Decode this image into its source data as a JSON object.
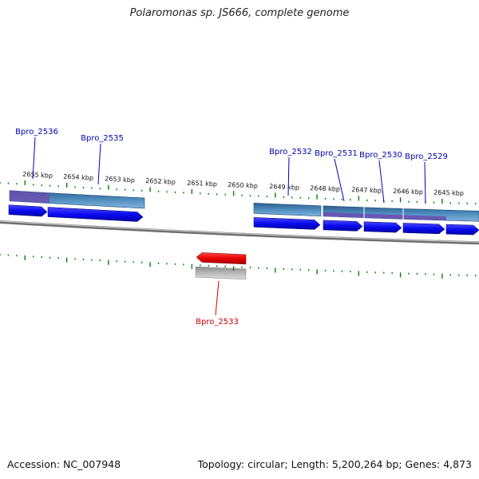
{
  "title": "Polaromonas sp. JS666, complete genome",
  "footer": {
    "accession": "Accession: NC_007948",
    "summary": "Topology: circular; Length: 5,200,264 bp; Genes: 4,873"
  },
  "colors": {
    "forward_gene": "#0a0af0",
    "reverse_gene": "#e00000",
    "feature_band": "#4a86b8",
    "feature_overlay": "#6a50b0",
    "reverse_band": "#b4b4b4",
    "backbone": "#8a8a8a",
    "ticks": "#008000",
    "label_forward": "#0000b0",
    "label_reverse": "#cc0000"
  },
  "ticks": [
    {
      "label": "2655 kbp"
    },
    {
      "label": "2654 kbp"
    },
    {
      "label": "2653 kbp"
    },
    {
      "label": "2652 kbp"
    },
    {
      "label": "2651 kbp"
    },
    {
      "label": "2650 kbp"
    },
    {
      "label": "2649 kbp"
    },
    {
      "label": "2648 kbp"
    },
    {
      "label": "2647 kbp"
    },
    {
      "label": "2646 kbp"
    },
    {
      "label": "2645 kbp"
    }
  ],
  "genes": [
    {
      "name": "Bpro_2536",
      "strand": "+"
    },
    {
      "name": "Bpro_2535",
      "strand": "+"
    },
    {
      "name": "Bpro_2533",
      "strand": "-"
    },
    {
      "name": "Bpro_2532",
      "strand": "+"
    },
    {
      "name": "Bpro_2531",
      "strand": "+"
    },
    {
      "name": "Bpro_2530",
      "strand": "+"
    },
    {
      "name": "Bpro_2529",
      "strand": "+"
    }
  ]
}
